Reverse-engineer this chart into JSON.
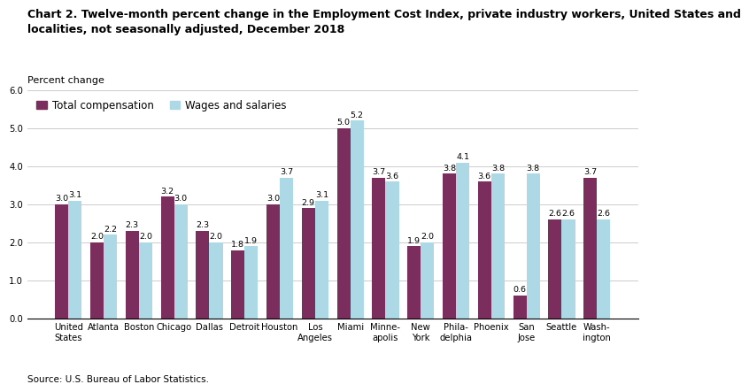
{
  "title_line1": "Chart 2. Twelve-month percent change in the Employment Cost Index, private industry workers, United States and",
  "title_line2": "localities, not seasonally adjusted, December 2018",
  "ylabel": "Percent change",
  "source": "Source: U.S. Bureau of Labor Statistics.",
  "categories": [
    "United\nStates",
    "Atlanta",
    "Boston",
    "Chicago",
    "Dallas",
    "Detroit",
    "Houston",
    "Los\nAngeles",
    "Miami",
    "Minne-\napolis",
    "New\nYork",
    "Phila-\ndelphia",
    "Phoenix",
    "San\nJose",
    "Seattle",
    "Wash-\nington"
  ],
  "total_compensation": [
    3.0,
    2.0,
    2.3,
    3.2,
    2.3,
    1.8,
    3.0,
    2.9,
    5.0,
    3.7,
    1.9,
    3.8,
    3.6,
    0.6,
    2.6,
    3.7
  ],
  "wages_and_salaries": [
    3.1,
    2.2,
    2.0,
    3.0,
    2.0,
    1.9,
    3.7,
    3.1,
    5.2,
    3.6,
    2.0,
    4.1,
    3.8,
    3.8,
    2.6,
    2.6
  ],
  "color_total": "#7B2D5E",
  "color_wages": "#ADD8E6",
  "ylim": [
    0,
    6.0
  ],
  "yticks": [
    0.0,
    1.0,
    2.0,
    3.0,
    4.0,
    5.0,
    6.0
  ],
  "legend_labels": [
    "Total compensation",
    "Wages and salaries"
  ],
  "bar_width": 0.38,
  "value_fontsize": 6.8,
  "tick_label_fontsize": 7.2,
  "title_fontsize": 9.0,
  "ylabel_fontsize": 8.0,
  "source_fontsize": 7.5,
  "legend_fontsize": 8.5
}
